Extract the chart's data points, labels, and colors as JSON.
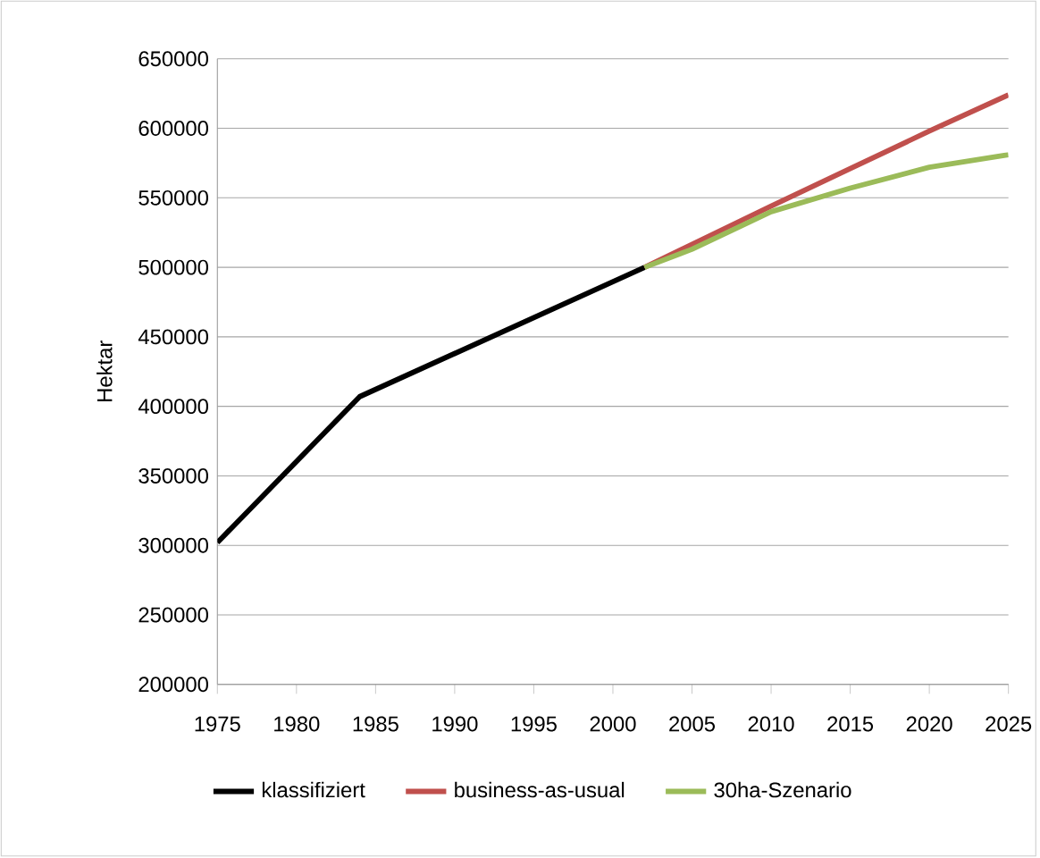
{
  "chart_data": {
    "type": "line",
    "ylabel": "Hektar",
    "xlim": [
      1975,
      2025
    ],
    "xticks": [
      1975,
      1980,
      1985,
      1990,
      1995,
      2000,
      2005,
      2010,
      2015,
      2020,
      2025
    ],
    "ylim": [
      200000,
      650000
    ],
    "yticks": [
      200000,
      250000,
      300000,
      350000,
      400000,
      450000,
      500000,
      550000,
      600000,
      650000
    ],
    "grid": "y",
    "legend": "bottom",
    "marker": "none",
    "line_style": "solid",
    "series": [
      {
        "name": "klassifiziert",
        "color": "#000000",
        "x": [
          1975,
          1984,
          2002
        ],
        "values": [
          302000,
          407000,
          500000
        ]
      },
      {
        "name": "business-as-usual",
        "color": "#c0504d",
        "x": [
          2002,
          2010,
          2015,
          2020,
          2025
        ],
        "values": [
          500000,
          544000,
          571000,
          598000,
          624000
        ]
      },
      {
        "name": "30ha-Szenario",
        "color": "#9bbb59",
        "x": [
          2002,
          2005,
          2010,
          2015,
          2020,
          2025
        ],
        "values": [
          500000,
          513000,
          540000,
          557000,
          572000,
          581000
        ]
      }
    ]
  }
}
